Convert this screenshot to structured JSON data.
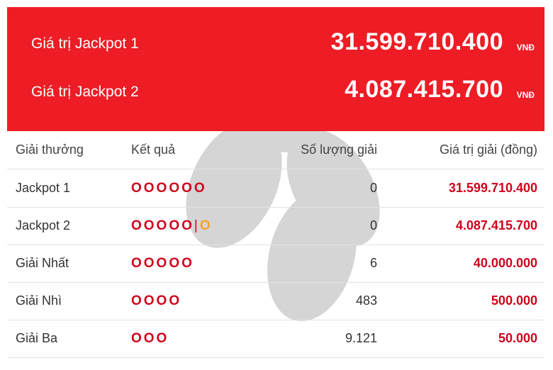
{
  "jackpots": [
    {
      "label": "Giá trị Jackpot 1",
      "amount": "31.599.710.400",
      "unit": "VNĐ"
    },
    {
      "label": "Giá trị Jackpot 2",
      "amount": "4.087.415.700",
      "unit": "VNĐ"
    }
  ],
  "table": {
    "headers": [
      "Giải thưởng",
      "Kết quả",
      "Số lượng giải",
      "Giá trị giải (đồng)"
    ],
    "rows": [
      {
        "prize": "Jackpot 1",
        "result": "OOOOOO",
        "count": "0",
        "value": "31.599.710.400"
      },
      {
        "prize": "Jackpot 2",
        "result": "OOOOO",
        "separator": "|",
        "extra": "O",
        "count": "0",
        "value": "4.087.415.700"
      },
      {
        "prize": "Giải Nhất",
        "result": "OOOOO",
        "count": "6",
        "value": "40.000.000"
      },
      {
        "prize": "Giải Nhì",
        "result": "OOOO",
        "count": "483",
        "value": "500.000"
      },
      {
        "prize": "Giải Ba",
        "result": "OOO",
        "count": "9.121",
        "value": "50.000"
      }
    ]
  }
}
